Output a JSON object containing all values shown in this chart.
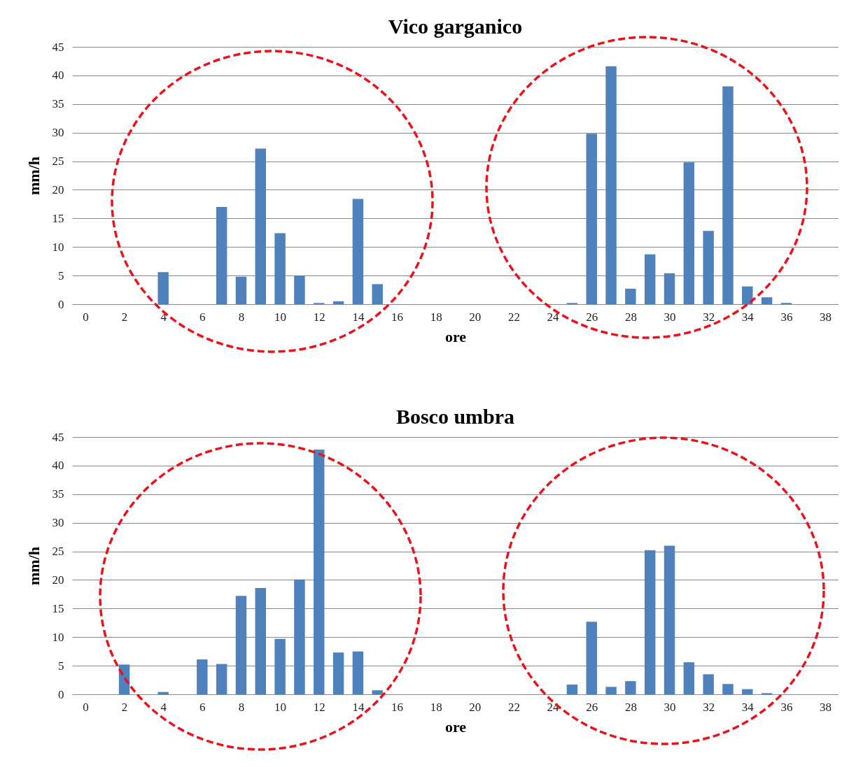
{
  "chart_data": [
    {
      "type": "bar",
      "title": "Vico garganico",
      "xlabel": "ore",
      "ylabel": "mm/h",
      "x": [
        4,
        7,
        8,
        9,
        10,
        11,
        12,
        13,
        14,
        15,
        25,
        26,
        27,
        28,
        29,
        30,
        31,
        32,
        33,
        34,
        35,
        36
      ],
      "series": [
        {
          "color": "#4f81bd",
          "values": [
            5.6,
            17,
            4.8,
            27.2,
            12.4,
            5,
            0.2,
            0.5,
            18.4,
            3.5,
            0.2,
            29.8,
            41.6,
            2.7,
            8.7,
            5.4,
            24.8,
            12.8,
            38.1,
            3.1,
            1.2,
            0.2
          ]
        }
      ],
      "xlim": [
        -0.5,
        38.5
      ],
      "xticks": [
        0,
        2,
        4,
        6,
        8,
        10,
        12,
        14,
        16,
        18,
        20,
        22,
        24,
        26,
        28,
        30,
        32,
        34,
        36,
        38
      ],
      "ylim": [
        0,
        45
      ],
      "yticks": [
        0,
        5,
        10,
        15,
        20,
        25,
        30,
        35,
        40,
        45
      ],
      "grid": "y"
    },
    {
      "type": "bar",
      "title": "Bosco umbra",
      "xlabel": "ore",
      "ylabel": "mm/h",
      "x": [
        2,
        4,
        6,
        7,
        8,
        9,
        10,
        11,
        12,
        13,
        14,
        15,
        25,
        26,
        27,
        28,
        29,
        30,
        31,
        32,
        33,
        34,
        35
      ],
      "series": [
        {
          "color": "#4f81bd",
          "values": [
            5.2,
            0.4,
            6.1,
            5.3,
            17.2,
            18.6,
            9.7,
            20.1,
            42.8,
            7.3,
            7.5,
            0.7,
            1.7,
            12.7,
            1.3,
            2.3,
            25.2,
            26,
            5.6,
            3.5,
            1.8,
            0.9,
            0.2
          ]
        }
      ],
      "xlim": [
        -0.5,
        38.5
      ],
      "xticks": [
        0,
        2,
        4,
        6,
        8,
        10,
        12,
        14,
        16,
        18,
        20,
        22,
        24,
        26,
        28,
        30,
        32,
        34,
        36,
        38
      ],
      "ylim": [
        0,
        45
      ],
      "yticks": [
        0,
        5,
        10,
        15,
        20,
        25,
        30,
        35,
        40,
        45
      ],
      "grid": "y"
    }
  ]
}
